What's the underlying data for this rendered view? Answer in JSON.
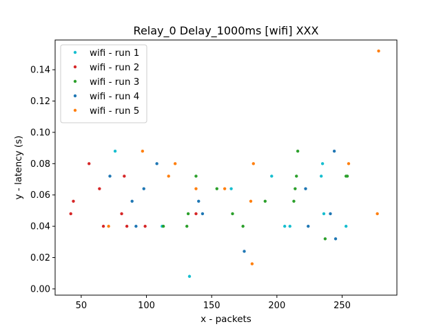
{
  "chart_data": {
    "type": "scatter",
    "title": "Relay_0 Delay_1000ms [wifi] XXX",
    "xlabel": "x - packets",
    "ylabel": "y - latency (s)",
    "xlim": [
      30,
      292
    ],
    "ylim": [
      -0.004,
      0.159
    ],
    "xticks": [
      50,
      100,
      150,
      200,
      250
    ],
    "yticks": [
      0.0,
      0.02,
      0.04,
      0.06,
      0.08,
      0.1,
      0.12,
      0.14
    ],
    "xtick_labels": [
      "50",
      "100",
      "150",
      "200",
      "250"
    ],
    "ytick_labels": [
      "0.00",
      "0.02",
      "0.04",
      "0.06",
      "0.08",
      "0.10",
      "0.12",
      "0.14"
    ],
    "grid": false,
    "legend_position": "top-left",
    "series": [
      {
        "name": "wifi - run 1",
        "color": "#17becf",
        "points": [
          [
            76,
            0.088
          ],
          [
            112,
            0.04
          ],
          [
            133,
            0.008
          ],
          [
            165,
            0.064
          ],
          [
            196,
            0.072
          ],
          [
            206,
            0.04
          ],
          [
            210,
            0.04
          ],
          [
            234,
            0.072
          ],
          [
            235,
            0.08
          ],
          [
            236,
            0.048
          ],
          [
            253,
            0.04
          ]
        ]
      },
      {
        "name": "wifi - run 2",
        "color": "#d62728",
        "points": [
          [
            42,
            0.048
          ],
          [
            44,
            0.056
          ],
          [
            56,
            0.08
          ],
          [
            64,
            0.064
          ],
          [
            67,
            0.04
          ],
          [
            81,
            0.048
          ],
          [
            83,
            0.072
          ],
          [
            85,
            0.04
          ],
          [
            99,
            0.04
          ],
          [
            138,
            0.048
          ]
        ]
      },
      {
        "name": "wifi - run 3",
        "color": "#2ca02c",
        "points": [
          [
            113,
            0.04
          ],
          [
            131,
            0.04
          ],
          [
            132,
            0.048
          ],
          [
            138,
            0.072
          ],
          [
            154,
            0.064
          ],
          [
            166,
            0.048
          ],
          [
            174,
            0.04
          ],
          [
            191,
            0.056
          ],
          [
            213,
            0.056
          ],
          [
            214,
            0.064
          ],
          [
            215,
            0.072
          ],
          [
            216,
            0.088
          ],
          [
            237,
            0.032
          ],
          [
            253,
            0.072
          ],
          [
            254,
            0.072
          ]
        ]
      },
      {
        "name": "wifi - run 4",
        "color": "#1f77b4",
        "points": [
          [
            72,
            0.072
          ],
          [
            89,
            0.056
          ],
          [
            92,
            0.04
          ],
          [
            98,
            0.064
          ],
          [
            108,
            0.08
          ],
          [
            140,
            0.056
          ],
          [
            143,
            0.048
          ],
          [
            175,
            0.024
          ],
          [
            222,
            0.064
          ],
          [
            224,
            0.04
          ],
          [
            241,
            0.048
          ],
          [
            244,
            0.088
          ],
          [
            245,
            0.032
          ]
        ]
      },
      {
        "name": "wifi - run 5",
        "color": "#ff7f0e",
        "points": [
          [
            71,
            0.04
          ],
          [
            97,
            0.088
          ],
          [
            117,
            0.072
          ],
          [
            122,
            0.08
          ],
          [
            138,
            0.064
          ],
          [
            160,
            0.064
          ],
          [
            180,
            0.056
          ],
          [
            181,
            0.016
          ],
          [
            182,
            0.08
          ],
          [
            255,
            0.08
          ],
          [
            277,
            0.048
          ],
          [
            278,
            0.152
          ]
        ]
      }
    ]
  }
}
